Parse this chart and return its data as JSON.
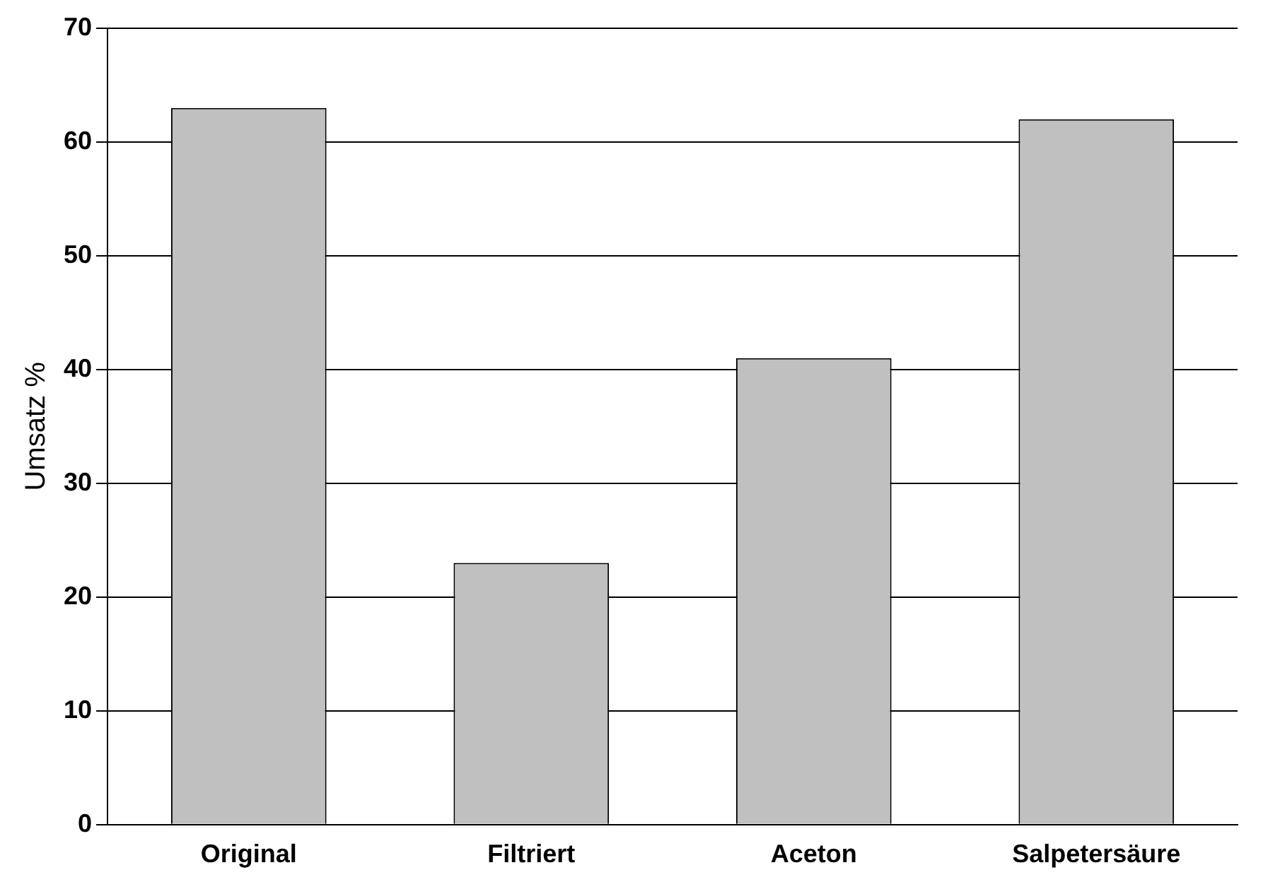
{
  "chart_data": {
    "type": "bar",
    "ylabel": "Umsatz %",
    "categories": [
      "Original",
      "Filtriert",
      "Aceton",
      "Salpetersäure"
    ],
    "values": [
      63,
      23,
      41,
      62
    ],
    "color": "#c0c0c0",
    "ylim": [
      0,
      70
    ],
    "yticks": [
      0,
      10,
      20,
      30,
      40,
      50,
      60,
      70
    ],
    "grid": "y",
    "legend": false
  }
}
